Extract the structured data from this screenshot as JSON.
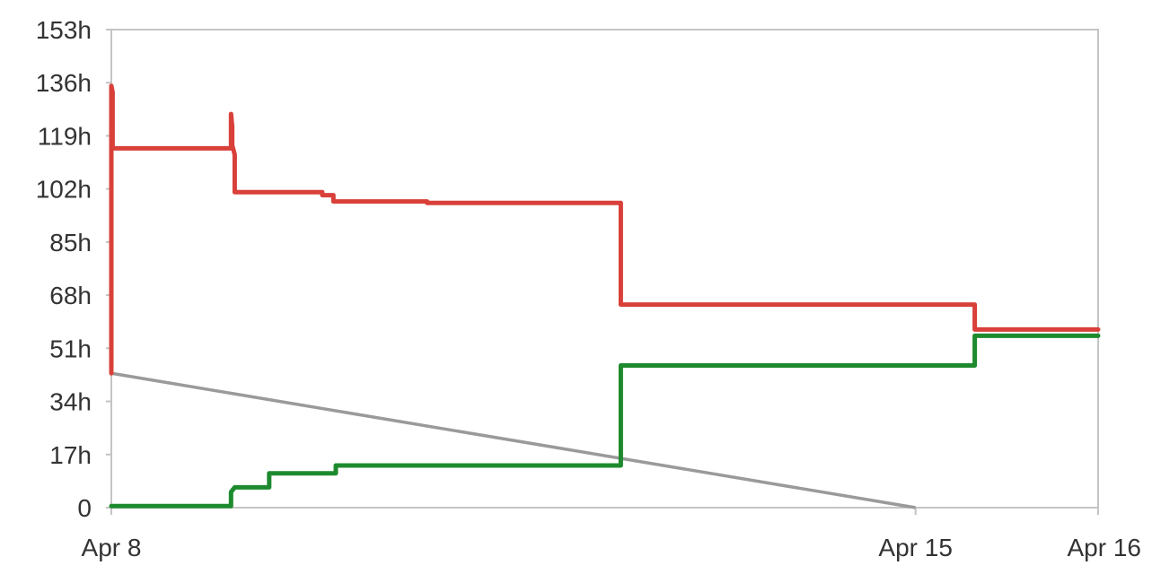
{
  "chart_data": {
    "type": "line",
    "title": "",
    "xlabel": "",
    "ylabel": "",
    "x_unit": "days",
    "x_range_days": [
      0,
      8
    ],
    "ylim": [
      0,
      153
    ],
    "grid": false,
    "legend": "none",
    "y_ticks": [
      {
        "value": 0,
        "label": "0"
      },
      {
        "value": 17,
        "label": "17h"
      },
      {
        "value": 34,
        "label": "34h"
      },
      {
        "value": 51,
        "label": "51h"
      },
      {
        "value": 68,
        "label": "68h"
      },
      {
        "value": 85,
        "label": "85h"
      },
      {
        "value": 102,
        "label": "102h"
      },
      {
        "value": 119,
        "label": "119h"
      },
      {
        "value": 136,
        "label": "136h"
      },
      {
        "value": 153,
        "label": "153h"
      }
    ],
    "x_ticks": [
      {
        "value": 0,
        "label": "Apr 8"
      },
      {
        "value": 6.52,
        "label": "Apr 15"
      },
      {
        "value": 8,
        "label": "Apr 16"
      }
    ],
    "series": [
      {
        "color": "#d9403a",
        "step": true,
        "points": [
          [
            0,
            43
          ],
          [
            0,
            135
          ],
          [
            0.01,
            133
          ],
          [
            0.01,
            115
          ],
          [
            0.97,
            115
          ],
          [
            0.97,
            126
          ],
          [
            0.98,
            122
          ],
          [
            0.98,
            116
          ],
          [
            1.0,
            113
          ],
          [
            1.0,
            101
          ],
          [
            1.71,
            101
          ],
          [
            1.71,
            100
          ],
          [
            1.8,
            100
          ],
          [
            1.8,
            98
          ],
          [
            2.56,
            98
          ],
          [
            2.56,
            97.5
          ],
          [
            4.13,
            97.5
          ],
          [
            4.13,
            65
          ],
          [
            7.0,
            65
          ],
          [
            7.0,
            57
          ],
          [
            8,
            57
          ]
        ]
      },
      {
        "color": "#1e8a2e",
        "step": true,
        "points": [
          [
            0,
            0.5
          ],
          [
            0.97,
            0.5
          ],
          [
            0.97,
            5
          ],
          [
            1.0,
            6.5
          ],
          [
            1.28,
            6.5
          ],
          [
            1.28,
            11
          ],
          [
            1.82,
            11
          ],
          [
            1.82,
            13.5
          ],
          [
            4.13,
            13.5
          ],
          [
            4.13,
            45.5
          ],
          [
            7.0,
            45.5
          ],
          [
            7.0,
            55
          ],
          [
            8,
            55
          ]
        ]
      },
      {
        "color": "#9a9a9a",
        "step": false,
        "points": [
          [
            0,
            43
          ],
          [
            6.52,
            0
          ]
        ]
      }
    ]
  }
}
